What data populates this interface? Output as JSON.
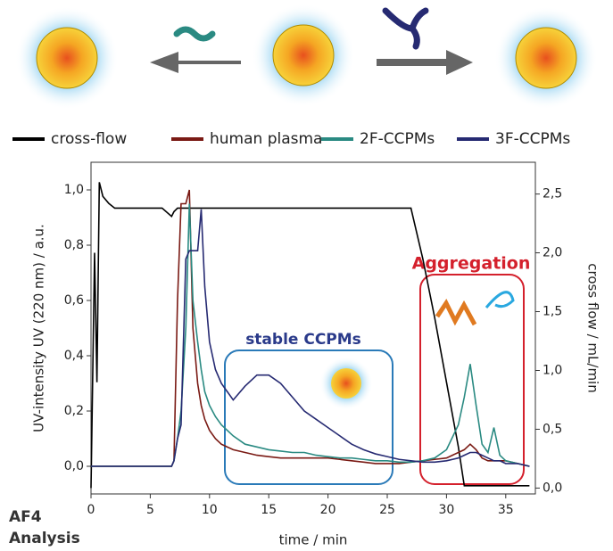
{
  "chart_data": {
    "type": "line",
    "xlabel": "time / min",
    "ylabel": "UV-intensity UV (220 nm) / a.u.",
    "y2label": "cross flow / mL/min",
    "annotations": [
      "stable CCPMs",
      "Aggregation",
      "AF4",
      "Analysis"
    ],
    "x": [
      0,
      0.3,
      0.5,
      0.7,
      1,
      1.5,
      2,
      3,
      4,
      5,
      6,
      6.8,
      7,
      7.3,
      7.6,
      8,
      8.3,
      8.6,
      9,
      9.3,
      9.6,
      10,
      10.5,
      11,
      12,
      13,
      14,
      15,
      16,
      17,
      18,
      19,
      20,
      21,
      22,
      23,
      24,
      25,
      26,
      27,
      28,
      29,
      30,
      31,
      31.5,
      32,
      32.5,
      33,
      33.5,
      34,
      34.5,
      35,
      36,
      37
    ],
    "xlim": [
      0,
      37.5
    ],
    "xticks": [
      0,
      5,
      10,
      15,
      20,
      25,
      30,
      35
    ],
    "ylim": [
      -0.1,
      1.1
    ],
    "yticks": [
      {
        "value": 0,
        "label": "0,0"
      },
      {
        "value": 0.2,
        "label": "0,2"
      },
      {
        "value": 0.4,
        "label": "0,4"
      },
      {
        "value": 0.6,
        "label": "0,6"
      },
      {
        "value": 0.8,
        "label": "0,8"
      },
      {
        "value": 1,
        "label": "1,0"
      }
    ],
    "y2lim": [
      -0.05,
      2.77
    ],
    "y2ticks": [
      {
        "value": 0,
        "label": "0,0"
      },
      {
        "value": 0.5,
        "label": "0,5"
      },
      {
        "value": 1,
        "label": "1,0"
      },
      {
        "value": 1.5,
        "label": "1,5"
      },
      {
        "value": 2,
        "label": "2,0"
      },
      {
        "value": 2.5,
        "label": "2,5"
      }
    ],
    "series": [
      {
        "name": "cross-flow",
        "color": "#000000",
        "axis": "y2",
        "values": [
          0.0,
          2.0,
          0.9,
          2.6,
          2.48,
          2.42,
          2.38,
          2.38,
          2.38,
          2.38,
          2.38,
          2.31,
          2.35,
          2.38,
          2.38,
          2.38,
          2.38,
          2.38,
          2.38,
          2.38,
          2.38,
          2.38,
          2.38,
          2.38,
          2.38,
          2.38,
          2.38,
          2.38,
          2.38,
          2.38,
          2.38,
          2.38,
          2.38,
          2.38,
          2.38,
          2.38,
          2.38,
          2.38,
          2.38,
          2.38,
          1.95,
          1.45,
          0.9,
          0.35,
          0.02,
          0.02,
          0.02,
          0.02,
          0.02,
          0.02,
          0.02,
          0.02,
          0.02,
          0.02
        ]
      },
      {
        "name": "human plasma",
        "color": "#7a1a14",
        "values": [
          0,
          0,
          0,
          0,
          0,
          0,
          0,
          0,
          0,
          0,
          0,
          0,
          0.02,
          0.6,
          0.95,
          0.95,
          1.0,
          0.5,
          0.3,
          0.22,
          0.17,
          0.13,
          0.1,
          0.08,
          0.06,
          0.05,
          0.04,
          0.035,
          0.03,
          0.03,
          0.03,
          0.03,
          0.03,
          0.025,
          0.02,
          0.015,
          0.01,
          0.01,
          0.01,
          0.015,
          0.02,
          0.025,
          0.03,
          0.05,
          0.06,
          0.08,
          0.06,
          0.03,
          0.02,
          0.02,
          0.02,
          0.02,
          0.01,
          0.0
        ]
      },
      {
        "name": "2F-CCPMs",
        "color": "#2a8a82",
        "values": [
          0,
          0,
          0,
          0,
          0,
          0,
          0,
          0,
          0,
          0,
          0,
          0,
          0.02,
          0.1,
          0.2,
          0.5,
          0.95,
          0.6,
          0.45,
          0.35,
          0.27,
          0.22,
          0.18,
          0.15,
          0.11,
          0.08,
          0.07,
          0.06,
          0.055,
          0.05,
          0.05,
          0.04,
          0.035,
          0.03,
          0.03,
          0.025,
          0.02,
          0.02,
          0.015,
          0.015,
          0.02,
          0.03,
          0.06,
          0.15,
          0.25,
          0.37,
          0.22,
          0.08,
          0.05,
          0.14,
          0.04,
          0.02,
          0.01,
          0.0
        ]
      },
      {
        "name": "3F-CCPMs",
        "color": "#262a72",
        "values": [
          0,
          0,
          0,
          0,
          0,
          0,
          0,
          0,
          0,
          0,
          0,
          0,
          0.02,
          0.1,
          0.15,
          0.75,
          0.78,
          0.78,
          0.78,
          0.93,
          0.65,
          0.45,
          0.35,
          0.3,
          0.24,
          0.29,
          0.33,
          0.33,
          0.3,
          0.25,
          0.2,
          0.17,
          0.14,
          0.11,
          0.08,
          0.06,
          0.045,
          0.035,
          0.025,
          0.02,
          0.015,
          0.015,
          0.02,
          0.03,
          0.04,
          0.05,
          0.05,
          0.04,
          0.03,
          0.02,
          0.02,
          0.01,
          0.01,
          0.0
        ]
      }
    ]
  }
}
